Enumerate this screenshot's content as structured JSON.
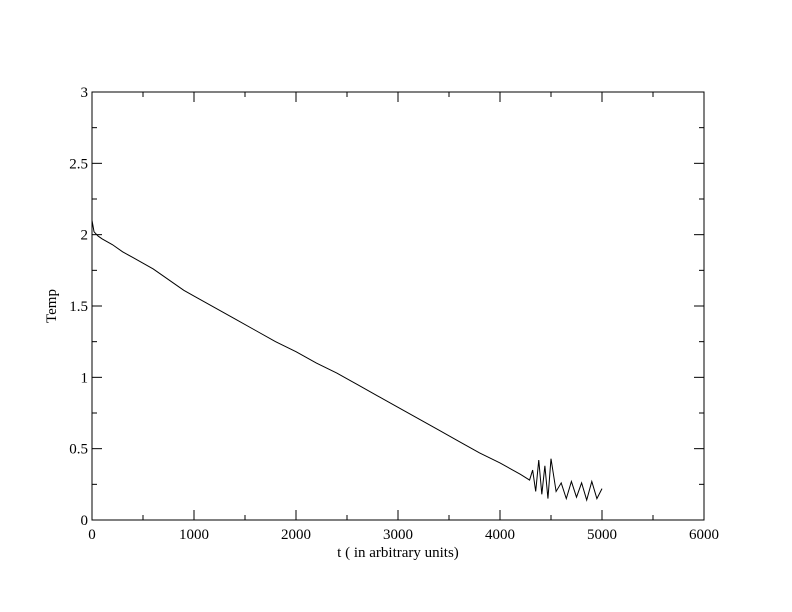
{
  "chart_data": {
    "type": "line",
    "title": "",
    "xlabel": "t ( in arbitrary units)",
    "ylabel": "Temp",
    "xlim": [
      0,
      6000
    ],
    "ylim": [
      0,
      3
    ],
    "x_ticks": [
      "0",
      "1000",
      "2000",
      "3000",
      "4000",
      "5000",
      "6000"
    ],
    "y_ticks": [
      "0",
      "0.5",
      "1",
      "1.5",
      "2",
      "2.5",
      "3"
    ],
    "grid": false,
    "legend": "none",
    "series": [
      {
        "color": "#000000",
        "x": [
          0,
          20,
          60,
          100,
          200,
          300,
          400,
          500,
          600,
          700,
          800,
          900,
          1000,
          1200,
          1400,
          1600,
          1800,
          2000,
          2200,
          2400,
          2600,
          2800,
          3000,
          3200,
          3400,
          3600,
          3800,
          4000,
          4200,
          4290,
          4320,
          4350,
          4380,
          4410,
          4440,
          4470,
          4500,
          4550,
          4600,
          4650,
          4700,
          4750,
          4800,
          4850,
          4900,
          4950,
          5000
        ],
        "y": [
          2.1,
          2.02,
          1.99,
          1.97,
          1.93,
          1.88,
          1.84,
          1.8,
          1.76,
          1.71,
          1.66,
          1.61,
          1.57,
          1.49,
          1.41,
          1.33,
          1.25,
          1.18,
          1.1,
          1.03,
          0.95,
          0.87,
          0.79,
          0.71,
          0.63,
          0.55,
          0.47,
          0.4,
          0.32,
          0.28,
          0.35,
          0.2,
          0.42,
          0.18,
          0.38,
          0.15,
          0.43,
          0.2,
          0.26,
          0.15,
          0.27,
          0.16,
          0.26,
          0.14,
          0.27,
          0.15,
          0.22
        ]
      }
    ]
  }
}
